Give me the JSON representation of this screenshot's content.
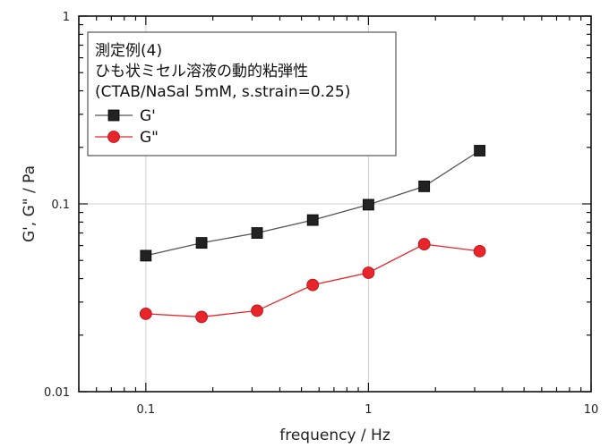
{
  "chart_data": {
    "type": "scatter",
    "title_lines": [
      "測定例(4)",
      "ひも状ミセル溶液の動的粘弾性",
      "(CTAB/NaSal 5mM, s.strain=0.25)"
    ],
    "xlabel": "frequency / Hz",
    "ylabel": "G', G\" / Pa",
    "xscale": "log",
    "yscale": "log",
    "xlim": [
      0.05,
      10
    ],
    "ylim": [
      0.01,
      1
    ],
    "xticks": [
      {
        "value": 0.1,
        "label": "0.1"
      },
      {
        "value": 1,
        "label": "1"
      },
      {
        "value": 10,
        "label": "10"
      }
    ],
    "yticks": [
      {
        "value": 0.01,
        "label": "0.01"
      },
      {
        "value": 0.1,
        "label": "0.1"
      },
      {
        "value": 1,
        "label": "1"
      }
    ],
    "grid": "major",
    "legend_position": "top-left",
    "series": [
      {
        "name": "G'",
        "marker": "square",
        "color": "#222222",
        "line_color": "#555555",
        "x": [
          0.1,
          0.178,
          0.316,
          0.562,
          1.0,
          1.78,
          3.16
        ],
        "y": [
          0.053,
          0.062,
          0.07,
          0.082,
          0.099,
          0.124,
          0.192
        ]
      },
      {
        "name": "G\"",
        "marker": "circle",
        "color": "#e8252b",
        "line_color": "#e8252b",
        "x": [
          0.1,
          0.178,
          0.316,
          0.562,
          1.0,
          1.78,
          3.16
        ],
        "y": [
          0.026,
          0.025,
          0.027,
          0.037,
          0.043,
          0.061,
          0.056
        ]
      }
    ]
  }
}
